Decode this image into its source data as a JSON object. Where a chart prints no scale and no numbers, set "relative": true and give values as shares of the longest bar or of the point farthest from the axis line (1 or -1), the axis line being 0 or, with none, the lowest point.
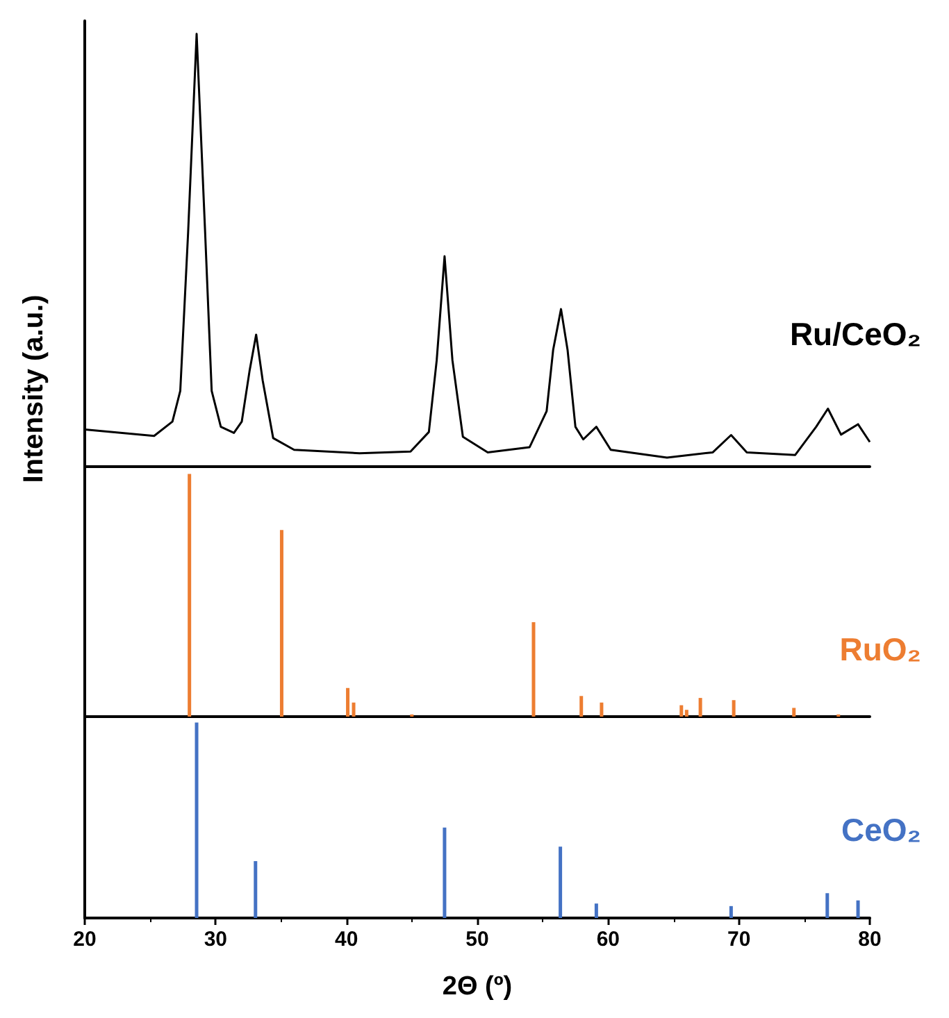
{
  "chart_data": [
    {
      "type": "line",
      "relative": true,
      "xlim": [
        20,
        80
      ],
      "tick_labels": false,
      "series": [
        {
          "name": "Ru/CeO₂",
          "color": "#000000",
          "x": [
            20.0,
            25.3,
            26.7,
            27.3,
            27.9,
            28.55,
            29.2,
            29.7,
            30.4,
            31.4,
            32.0,
            32.6,
            33.1,
            33.6,
            34.4,
            36.0,
            41.0,
            44.9,
            46.3,
            46.9,
            47.5,
            48.1,
            48.9,
            50.8,
            54.0,
            55.3,
            55.8,
            56.4,
            56.9,
            57.5,
            58.1,
            59.1,
            60.2,
            64.5,
            68.0,
            69.4,
            70.6,
            74.3,
            75.9,
            76.8,
            77.8,
            79.1,
            80.0
          ],
          "values": [
            0.086,
            0.071,
            0.104,
            0.175,
            0.541,
            1.0,
            0.541,
            0.175,
            0.092,
            0.078,
            0.104,
            0.222,
            0.305,
            0.199,
            0.066,
            0.039,
            0.031,
            0.035,
            0.08,
            0.246,
            0.486,
            0.246,
            0.069,
            0.033,
            0.045,
            0.128,
            0.27,
            0.364,
            0.27,
            0.092,
            0.063,
            0.092,
            0.039,
            0.021,
            0.033,
            0.073,
            0.033,
            0.027,
            0.092,
            0.134,
            0.074,
            0.098,
            0.057
          ]
        }
      ]
    },
    {
      "type": "bar",
      "relative": true,
      "xlim": [
        20,
        80
      ],
      "tick_labels": false,
      "ylabel": "Intensity (a.u.)",
      "series": [
        {
          "name": "RuO₂",
          "color": "#ed7d31",
          "x": [
            28.0,
            35.05,
            40.1,
            40.55,
            45.0,
            54.3,
            57.95,
            59.5,
            65.6,
            66.0,
            67.05,
            69.6,
            74.2,
            77.6
          ],
          "values": [
            1.0,
            0.769,
            0.118,
            0.058,
            0.009,
            0.389,
            0.085,
            0.058,
            0.047,
            0.028,
            0.077,
            0.068,
            0.036,
            0.009
          ]
        }
      ]
    },
    {
      "type": "bar",
      "relative": true,
      "xlim": [
        20,
        80
      ],
      "xticks": [
        20,
        30,
        40,
        50,
        60,
        70,
        80
      ],
      "tick_labels": "x",
      "xlabel": "2Θ (º)",
      "series": [
        {
          "name": "CeO₂",
          "color": "#4472c4",
          "x": [
            28.55,
            33.05,
            47.5,
            56.35,
            59.1,
            69.4,
            76.75,
            79.1
          ],
          "values": [
            1.0,
            0.291,
            0.463,
            0.365,
            0.074,
            0.061,
            0.127,
            0.09
          ]
        }
      ]
    }
  ]
}
